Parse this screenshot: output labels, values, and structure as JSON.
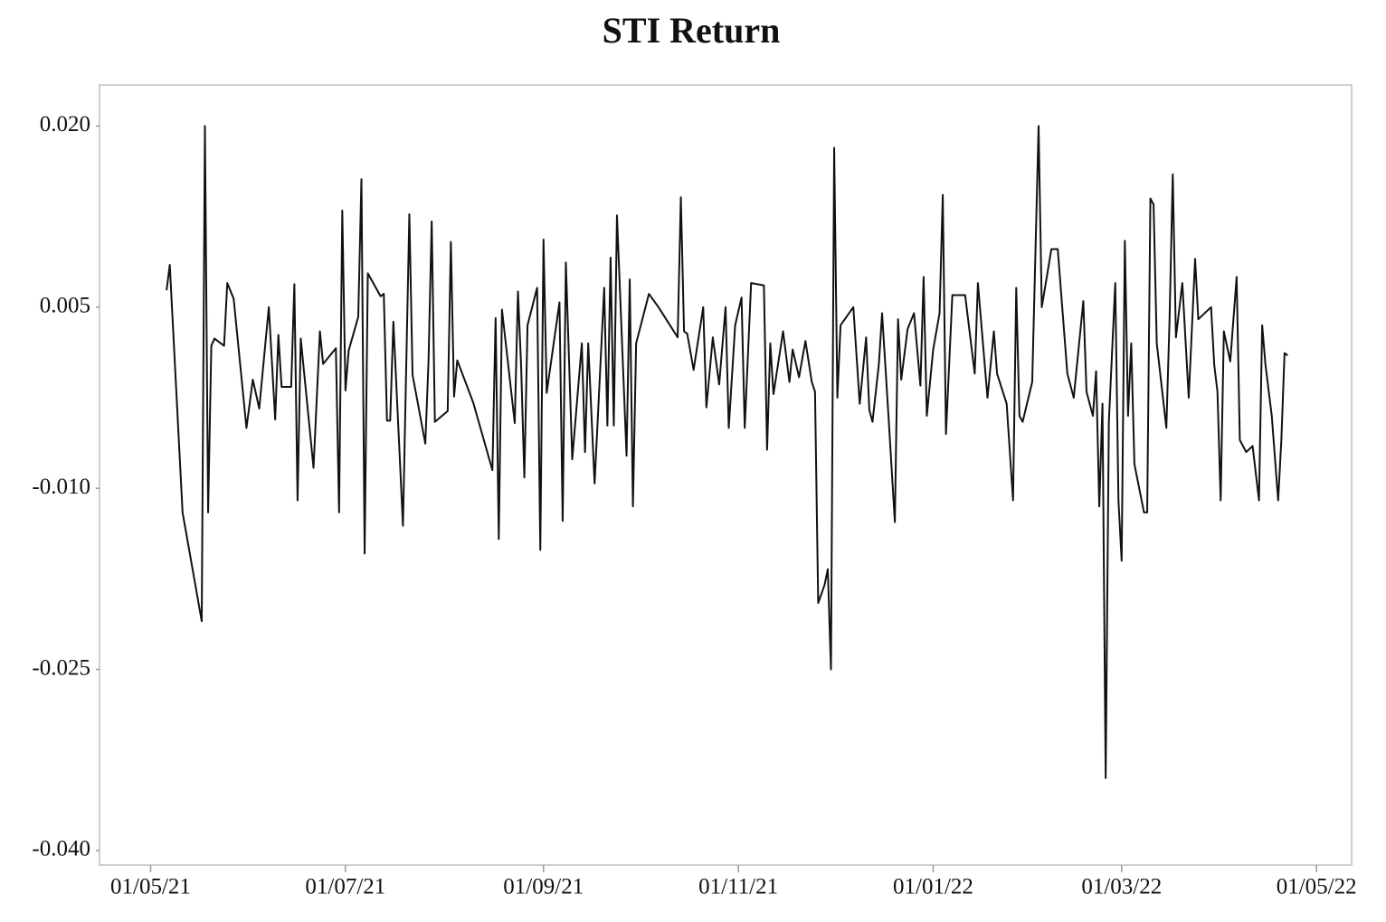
{
  "chart_data": {
    "type": "line",
    "title": "STI Return",
    "x": [
      "06/05/21",
      "07/05/21",
      "11/05/21",
      "17/05/21",
      "18/05/21",
      "19/05/21",
      "20/05/21",
      "21/05/21",
      "24/05/21",
      "25/05/21",
      "27/05/21",
      "31/05/21",
      "02/06/21",
      "04/06/21",
      "07/06/21",
      "09/06/21",
      "10/06/21",
      "11/06/21",
      "14/06/21",
      "15/06/21",
      "16/06/21",
      "17/06/21",
      "21/06/21",
      "23/06/21",
      "24/06/21",
      "28/06/21",
      "29/06/21",
      "30/06/21",
      "01/07/21",
      "02/07/21",
      "05/07/21",
      "06/07/21",
      "07/07/21",
      "08/07/21",
      "12/07/21",
      "13/07/21",
      "14/07/21",
      "15/07/21",
      "16/07/21",
      "19/07/21",
      "21/07/21",
      "22/07/21",
      "26/07/21",
      "27/07/21",
      "28/07/21",
      "29/07/21",
      "02/08/21",
      "03/08/21",
      "04/08/21",
      "05/08/21",
      "10/08/21",
      "16/08/21",
      "17/08/21",
      "18/08/21",
      "19/08/21",
      "23/08/21",
      "24/08/21",
      "25/08/21",
      "26/08/21",
      "27/08/21",
      "30/08/21",
      "31/08/21",
      "01/09/21",
      "02/09/21",
      "06/09/21",
      "07/09/21",
      "08/09/21",
      "10/09/21",
      "13/09/21",
      "14/09/21",
      "15/09/21",
      "17/09/21",
      "20/09/21",
      "21/09/21",
      "22/09/21",
      "23/09/21",
      "24/09/21",
      "27/09/21",
      "28/09/21",
      "29/09/21",
      "30/09/21",
      "04/10/21",
      "07/10/21",
      "13/10/21",
      "14/10/21",
      "15/10/21",
      "16/10/21",
      "18/10/21",
      "21/10/21",
      "22/10/21",
      "24/10/21",
      "26/10/21",
      "28/10/21",
      "29/10/21",
      "31/10/21",
      "02/11/21",
      "03/11/21",
      "05/11/21",
      "09/11/21",
      "10/11/21",
      "11/11/21",
      "12/11/21",
      "15/11/21",
      "17/11/21",
      "18/11/21",
      "20/11/21",
      "22/11/21",
      "24/11/21",
      "25/11/21",
      "26/11/21",
      "28/11/21",
      "29/11/21",
      "30/11/21",
      "01/12/21",
      "02/12/21",
      "03/12/21",
      "07/12/21",
      "09/12/21",
      "11/12/21",
      "12/12/21",
      "13/12/21",
      "15/12/21",
      "16/12/21",
      "18/12/21",
      "20/12/21",
      "21/12/21",
      "22/12/21",
      "24/12/21",
      "26/12/21",
      "28/12/21",
      "29/12/21",
      "30/12/21",
      "01/01/22",
      "03/01/22",
      "04/01/22",
      "05/01/22",
      "07/01/22",
      "11/01/22",
      "14/01/22",
      "15/01/22",
      "18/01/22",
      "20/01/22",
      "21/01/22",
      "24/01/22",
      "26/01/22",
      "27/01/22",
      "28/01/22",
      "29/01/22",
      "01/02/22",
      "03/02/22",
      "04/02/22",
      "07/02/22",
      "09/02/22",
      "12/02/22",
      "14/02/22",
      "17/02/22",
      "18/02/22",
      "20/02/22",
      "21/02/22",
      "22/02/22",
      "23/02/22",
      "24/02/22",
      "25/02/22",
      "27/02/22",
      "28/02/22",
      "01/03/22",
      "02/03/22",
      "03/03/22",
      "04/03/22",
      "05/03/22",
      "08/03/22",
      "09/03/22",
      "10/03/22",
      "11/03/22",
      "12/03/22",
      "15/03/22",
      "16/03/22",
      "17/03/22",
      "18/03/22",
      "20/03/22",
      "22/03/22",
      "24/03/22",
      "25/03/22",
      "29/03/22",
      "30/03/22",
      "31/03/22",
      "01/04/22",
      "02/04/22",
      "04/04/22",
      "06/04/22",
      "07/04/22",
      "09/04/22",
      "11/04/22",
      "13/04/22",
      "14/04/22",
      "15/04/22",
      "17/04/22",
      "19/04/22",
      "20/04/22",
      "21/04/22",
      "22/04/22"
    ],
    "series": [
      {
        "name": "STI Return",
        "color": "#111111",
        "values": [
          0.0064,
          0.0085,
          -0.012,
          -0.021,
          0.02,
          -0.012,
          0.0018,
          0.0024,
          0.0018,
          0.007,
          0.0057,
          -0.005,
          -0.001,
          -0.0034,
          0.005,
          -0.0043,
          0.0027,
          -0.0016,
          -0.0016,
          0.0069,
          -0.011,
          0.0024,
          -0.0083,
          0.003,
          0.0003,
          0.0016,
          -0.012,
          0.013,
          -0.0019,
          0.0014,
          0.0042,
          0.0156,
          -0.0154,
          0.0078,
          0.0059,
          0.0061,
          -0.0044,
          -0.0044,
          0.0038,
          -0.0131,
          0.0127,
          -0.0006,
          -0.0063,
          0.0005,
          0.0121,
          -0.0045,
          -0.0036,
          0.0104,
          -0.0024,
          0.0006,
          -0.0029,
          -0.0085,
          0.0041,
          -0.0142,
          0.0048,
          -0.0046,
          0.0063,
          0.0001,
          -0.0091,
          0.0035,
          0.0066,
          -0.0151,
          0.0106,
          -0.0021,
          0.0054,
          -0.0127,
          0.0087,
          -0.0076,
          0.002,
          -0.007,
          0.002,
          -0.0096,
          0.0066,
          -0.0048,
          0.0091,
          -0.0048,
          0.0126,
          -0.0073,
          0.0073,
          -0.0115,
          0.002,
          0.0061,
          0.005,
          0.0025,
          0.0141,
          0.003,
          0.0028,
          -0.0002,
          0.005,
          -0.0033,
          0.0025,
          -0.0014,
          0.005,
          -0.005,
          0.0035,
          0.0058,
          -0.005,
          0.007,
          0.0068,
          -0.0068,
          0.002,
          -0.0022,
          0.003,
          -0.0012,
          0.0015,
          -0.0008,
          0.0022,
          -0.0012,
          -0.002,
          -0.0195,
          -0.018,
          -0.0167,
          -0.025,
          0.0182,
          -0.0025,
          0.0035,
          0.005,
          -0.003,
          0.0025,
          -0.0035,
          -0.0045,
          0.0003,
          0.0045,
          -0.004,
          -0.0128,
          0.004,
          -0.001,
          0.0032,
          0.0045,
          -0.0015,
          0.0075,
          -0.004,
          0.0015,
          0.0045,
          0.0143,
          -0.0055,
          0.006,
          0.006,
          -0.0005,
          0.007,
          -0.0025,
          0.003,
          -0.0005,
          -0.003,
          -0.011,
          0.0066,
          -0.004,
          -0.0045,
          -0.0012,
          0.02,
          0.005,
          0.0098,
          0.0098,
          -0.0005,
          -0.0025,
          0.0055,
          -0.002,
          -0.004,
          -0.0003,
          -0.0115,
          -0.003,
          -0.034,
          -0.0045,
          0.007,
          -0.011,
          -0.016,
          0.0105,
          -0.004,
          0.002,
          -0.008,
          -0.012,
          -0.012,
          0.014,
          0.0135,
          0.002,
          -0.005,
          0.004,
          0.016,
          0.0025,
          0.007,
          -0.0025,
          0.009,
          0.004,
          0.005,
          0.0002,
          -0.002,
          -0.011,
          0.003,
          0.0005,
          0.0075,
          -0.006,
          -0.007,
          -0.0065,
          -0.011,
          0.0035,
          0.0003,
          -0.004,
          -0.011,
          -0.006,
          0.0012,
          0.001
        ]
      }
    ],
    "xlim": [
      "15/04/21",
      "12/05/22"
    ],
    "xticks": [
      "01/05/21",
      "01/07/21",
      "01/09/21",
      "01/11/21",
      "01/01/22",
      "01/03/22",
      "01/05/22"
    ],
    "ylim": [
      -0.0412,
      0.0234
    ],
    "yticks": [
      {
        "value": -0.04,
        "label": "-0.040"
      },
      -0.025,
      {
        "value": -0.01,
        "label": "-0.010"
      },
      0.005,
      {
        "value": 0.02,
        "label": "0.020"
      }
    ],
    "grid": false
  }
}
